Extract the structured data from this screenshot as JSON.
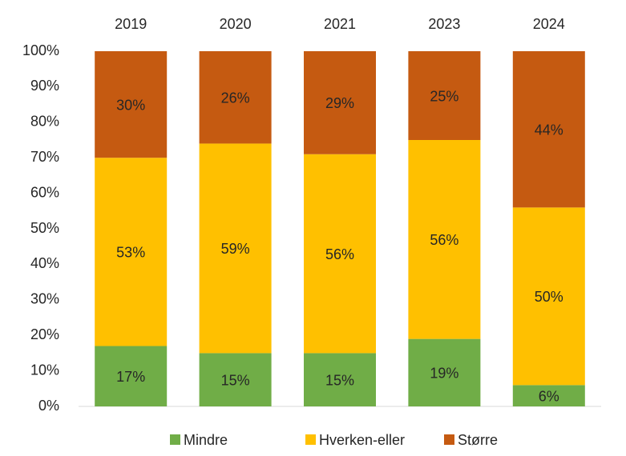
{
  "chart_data": {
    "type": "stacked_bar",
    "categories": [
      "2019",
      "2020",
      "2021",
      "2023",
      "2024"
    ],
    "series": [
      {
        "name": "Mindre",
        "color": "#70ad47",
        "values": [
          17,
          15,
          15,
          19,
          6
        ],
        "value_labels": [
          "17%",
          "15%",
          "15%",
          "19%",
          "6%"
        ]
      },
      {
        "name": "Hverken-eller",
        "color": "#ffc000",
        "values": [
          53,
          59,
          56,
          56,
          50
        ],
        "value_labels": [
          "53%",
          "59%",
          "56%",
          "56%",
          "50%"
        ]
      },
      {
        "name": "Større",
        "color": "#c55a11",
        "values": [
          30,
          26,
          29,
          25,
          44
        ],
        "value_labels": [
          "30%",
          "26%",
          "29%",
          "25%",
          "44%"
        ]
      }
    ],
    "ylim": [
      0,
      100
    ],
    "yticks": [
      {
        "value": 0,
        "label": "0%"
      },
      {
        "value": 10,
        "label": "10%"
      },
      {
        "value": 20,
        "label": "20%"
      },
      {
        "value": 30,
        "label": "30%"
      },
      {
        "value": 40,
        "label": "40%"
      },
      {
        "value": 50,
        "label": "50%"
      },
      {
        "value": 60,
        "label": "60%"
      },
      {
        "value": 70,
        "label": "70%"
      },
      {
        "value": 80,
        "label": "80%"
      },
      {
        "value": 90,
        "label": "90%"
      },
      {
        "value": 100,
        "label": "100%"
      }
    ],
    "legend": "bottom"
  }
}
